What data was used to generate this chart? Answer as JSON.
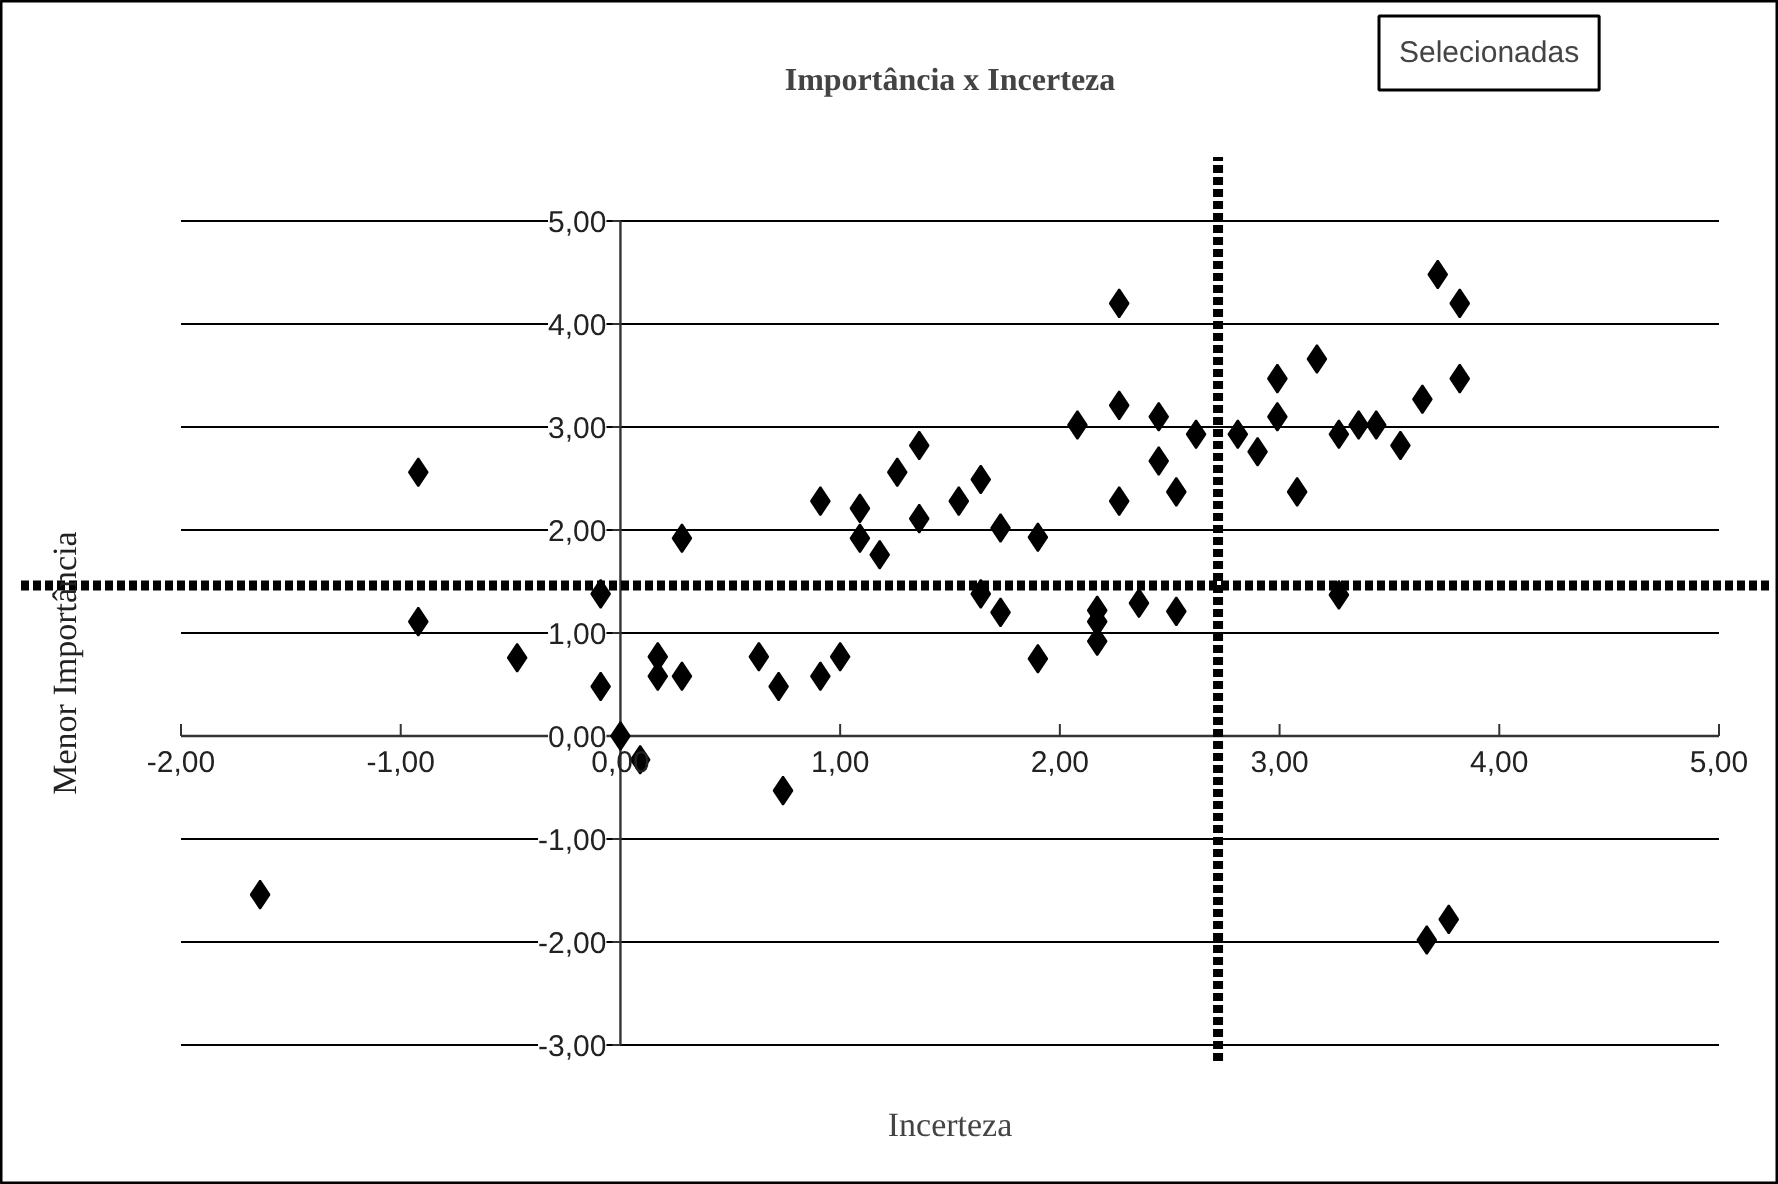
{
  "chart_data": {
    "type": "scatter",
    "title": "Importância x Incerteza",
    "xlabel": "Incerteza",
    "ylabel": "Menor Importância",
    "annotations": [
      "Selecionadas"
    ],
    "marker": "diamond",
    "grid": "y",
    "xlim": [
      -2,
      5
    ],
    "ylim": [
      -3,
      5
    ],
    "xticks": [
      {
        "value": -2,
        "label": "-2,00"
      },
      {
        "value": -1,
        "label": "-1,00"
      },
      {
        "value": 0,
        "label": "0,00"
      },
      {
        "value": 1,
        "label": "1,00"
      },
      {
        "value": 2,
        "label": "2,00"
      },
      {
        "value": 3,
        "label": "3,00"
      },
      {
        "value": 4,
        "label": "4,00"
      },
      {
        "value": 5,
        "label": "5,00"
      }
    ],
    "yticks": [
      {
        "value": -3,
        "label": "-3,00"
      },
      {
        "value": -2,
        "label": "-2,00"
      },
      {
        "value": -1,
        "label": "-1,00"
      },
      {
        "value": 0,
        "label": "0,00"
      },
      {
        "value": 1,
        "label": "1,00"
      },
      {
        "value": 2,
        "label": "2,00"
      },
      {
        "value": 3,
        "label": "3,00"
      },
      {
        "value": 4,
        "label": "4,00"
      },
      {
        "value": 5,
        "label": "5,00"
      }
    ],
    "ref_lines": [
      {
        "axis": "y",
        "value": 1.46,
        "label": null,
        "color": "#000000",
        "line_style": "dashed"
      },
      {
        "axis": "x",
        "value": 2.72,
        "label": null,
        "color": "#000000",
        "line_style": "dashed"
      }
    ],
    "series": [
      {
        "color": "#000000",
        "x": [
          -0.92,
          -0.92,
          -0.47,
          -0.09,
          -0.09,
          0.0,
          0.09,
          0.17,
          0.17,
          0.28,
          0.28,
          0.63,
          0.72,
          0.91,
          0.91,
          1.0,
          1.09,
          1.09,
          1.18,
          1.26,
          1.36,
          1.36,
          1.54,
          1.64,
          1.64,
          1.73,
          1.73,
          1.9,
          1.9,
          2.08,
          2.17,
          2.17,
          2.17,
          2.27,
          2.27,
          2.27,
          2.36,
          2.45,
          2.45,
          2.53,
          2.53,
          2.62,
          2.81,
          2.9,
          2.99,
          2.99,
          3.08,
          3.17,
          3.27,
          3.27,
          3.36,
          3.44,
          3.55,
          3.65,
          3.72,
          3.82,
          3.82,
          -1.64,
          3.67,
          3.77,
          0.74
        ],
        "values": [
          2.56,
          1.11,
          0.76,
          1.38,
          0.48,
          0.0,
          -0.23,
          0.77,
          0.58,
          0.58,
          1.92,
          0.77,
          0.48,
          2.28,
          0.58,
          0.77,
          2.21,
          1.92,
          1.76,
          2.56,
          2.82,
          2.11,
          2.28,
          2.49,
          1.38,
          2.02,
          1.2,
          1.93,
          0.75,
          3.02,
          1.22,
          1.11,
          0.92,
          4.2,
          3.21,
          2.28,
          1.29,
          3.1,
          2.67,
          2.37,
          1.21,
          2.93,
          2.93,
          2.76,
          3.47,
          3.1,
          2.37,
          3.66,
          2.93,
          1.37,
          3.02,
          3.02,
          2.82,
          3.27,
          4.48,
          4.2,
          3.47,
          -1.54,
          -1.98,
          -1.78,
          -0.53
        ]
      }
    ]
  }
}
